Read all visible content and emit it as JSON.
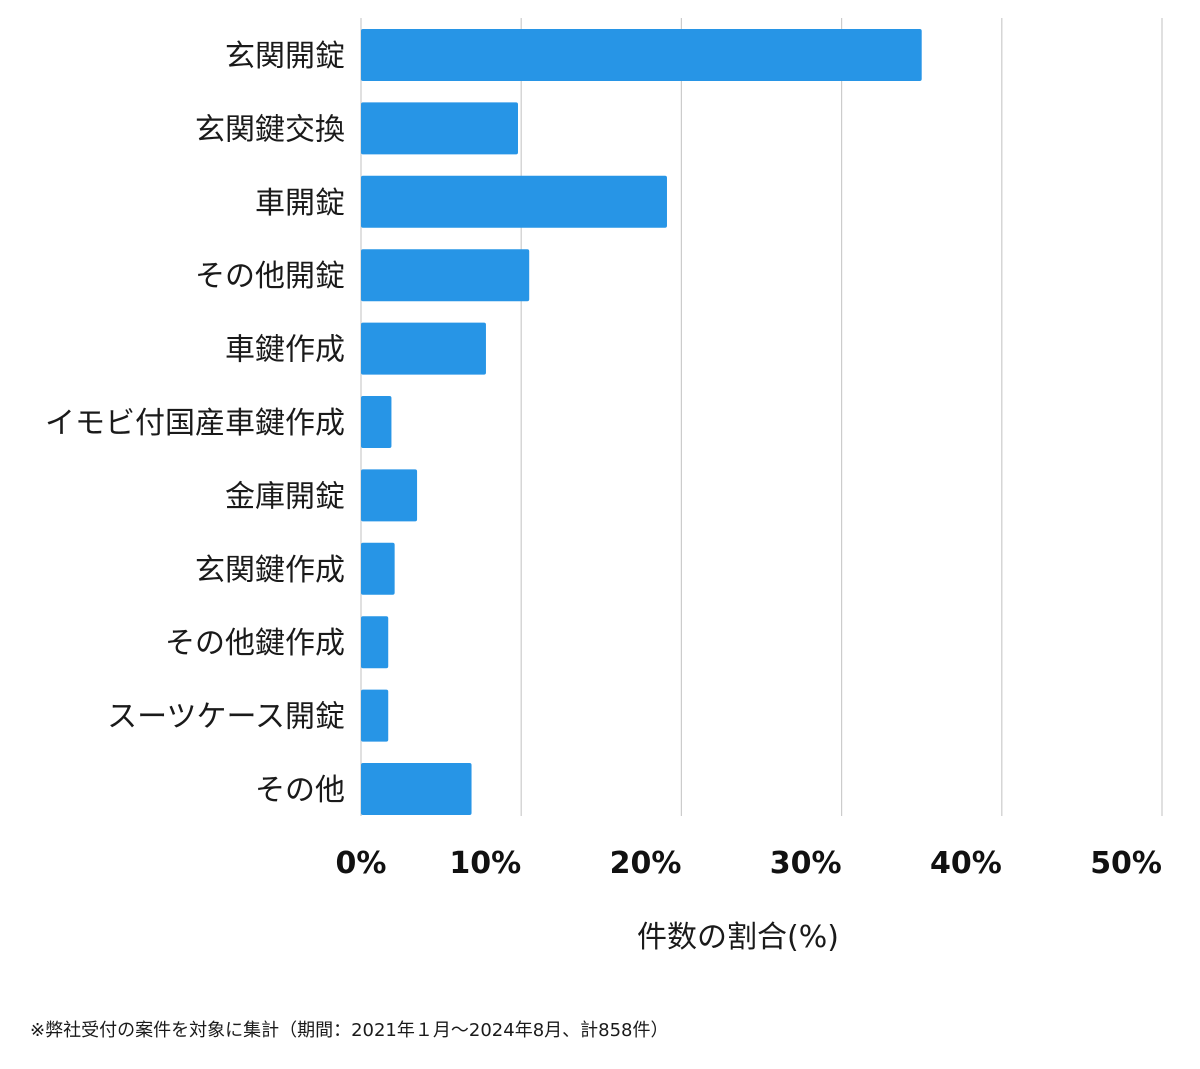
{
  "chart_data": {
    "type": "bar",
    "orientation": "horizontal",
    "categories": [
      "玄関開錠",
      "玄関鍵交換",
      "車開錠",
      "その他開錠",
      "車鍵作成",
      "イモビ付国産車鍵作成",
      "金庫開錠",
      "玄関鍵作成",
      "その他鍵作成",
      "スーツケース開錠",
      "その他"
    ],
    "values": [
      35.0,
      9.8,
      19.1,
      10.5,
      7.8,
      1.9,
      3.5,
      2.1,
      1.7,
      1.7,
      6.9
    ],
    "xlim": [
      0,
      50
    ],
    "xticks": [
      0,
      10,
      20,
      30,
      40,
      50
    ],
    "xtick_labels": [
      "0%",
      "10%",
      "20%",
      "30%",
      "40%",
      "50%"
    ],
    "xlabel": "件数の割合(%)",
    "ylabel": "",
    "title": "",
    "grid": "vertical",
    "bar_color": "#2795e6",
    "grid_color": "#cccccc"
  },
  "footnote": "※弊社受付の案件を対象に集計（期間：2021年１月〜2024年8月、計858件）"
}
